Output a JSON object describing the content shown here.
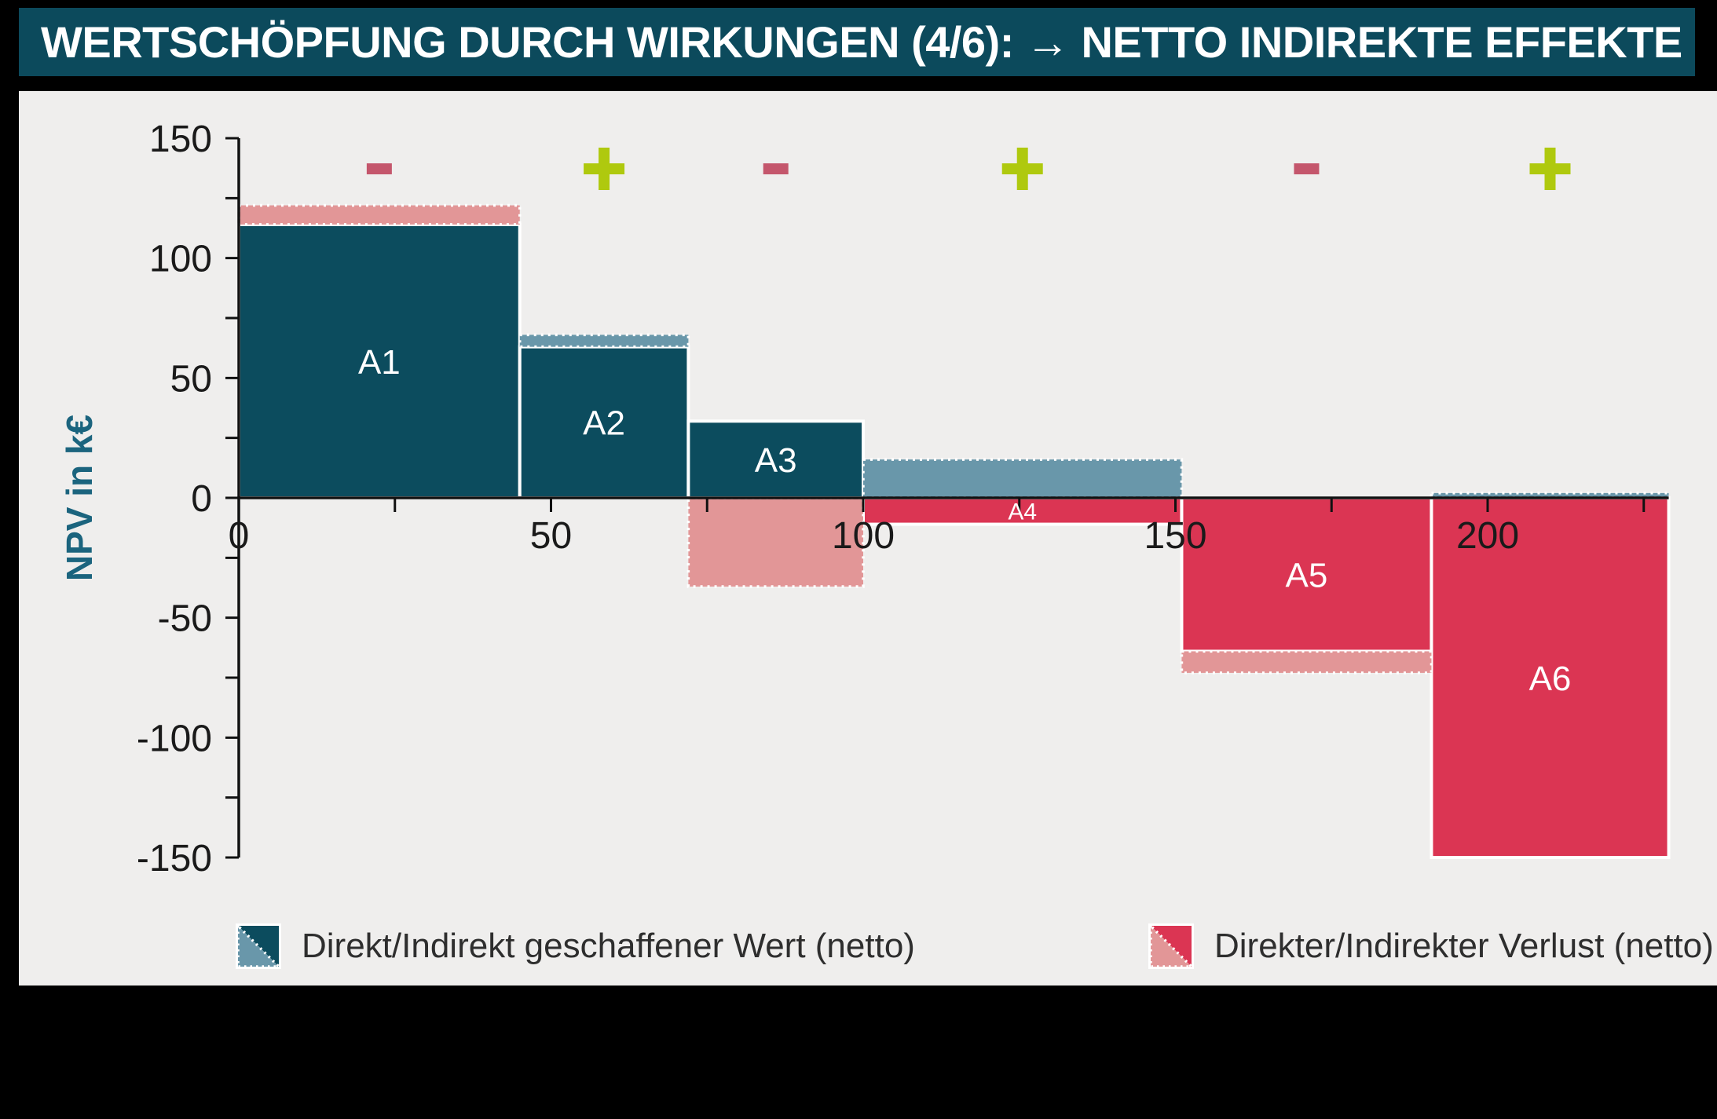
{
  "chart_data": {
    "type": "bar",
    "title": "WERTSCHÖPFUNG DURCH WIRKUNGEN (4/6): → NETTO INDIREKTE EFFEKTE",
    "xlabel": "",
    "ylabel": "NPV in k€",
    "xlim": [
      0,
      232
    ],
    "ylim": [
      -150,
      150
    ],
    "grid": false,
    "x_ticks": {
      "major": [
        0,
        50,
        100,
        150,
        200
      ],
      "minor": [
        25,
        75,
        125,
        175,
        225
      ]
    },
    "y_ticks": {
      "major": [
        150,
        100,
        50,
        0,
        -50,
        -100,
        -150
      ],
      "minor": [
        125,
        75,
        25,
        -25,
        -75,
        -125
      ]
    },
    "bars": [
      {
        "label": "A1",
        "x0": 0,
        "x1": 45,
        "direct": 114,
        "indirect_band": {
          "from": 114,
          "to": 122,
          "kind": "loss"
        },
        "sign": "-"
      },
      {
        "label": "A2",
        "x0": 45,
        "x1": 72,
        "direct": 63,
        "indirect_band": {
          "from": 63,
          "to": 68,
          "kind": "value"
        },
        "sign": "+"
      },
      {
        "label": "A3",
        "x0": 72,
        "x1": 100,
        "direct": 32,
        "indirect_band": {
          "from": 0,
          "to": -37,
          "kind": "loss"
        },
        "sign": "-"
      },
      {
        "label": "A4",
        "x0": 100,
        "x1": 151,
        "direct": -11,
        "indirect_band": {
          "from": 0,
          "to": 16,
          "kind": "value"
        },
        "sign": "+"
      },
      {
        "label": "A5",
        "x0": 151,
        "x1": 191,
        "direct": -64,
        "indirect_band": {
          "from": -64,
          "to": -73,
          "kind": "loss"
        },
        "sign": "-"
      },
      {
        "label": "A6",
        "x0": 191,
        "x1": 229,
        "direct": -150,
        "indirect_band": {
          "from": 0,
          "to": 2,
          "kind": "value"
        },
        "sign": "+"
      }
    ],
    "legend": [
      {
        "label": "Direkt/Indirekt geschaffener Wert (netto)",
        "solid_color": "#0C4C5E",
        "band_color": "#6997AA"
      },
      {
        "label": "Direkter/Indirekter Verlust (netto)",
        "solid_color": "#DB3553",
        "band_color": "#E29697"
      }
    ],
    "colors": {
      "direct_value": "#0C4C5E",
      "indirect_value": "#6997AA",
      "direct_loss": "#DB3553",
      "indirect_loss": "#E29697",
      "bar_border": "#FFFFFF",
      "axis": "#111111",
      "tick_label": "#1A1A1A",
      "ylabel_color": "#1B647E",
      "bar_label": "#FFFFFF",
      "plus_sign": "#AFC90E",
      "minus_sign": "#C4566C",
      "panel_bg": "#EFEEED",
      "page_bg": "#000000",
      "title_bg": "#0C4A5C",
      "title_fg": "#FFFFFF"
    },
    "legend_position": "bottom"
  }
}
